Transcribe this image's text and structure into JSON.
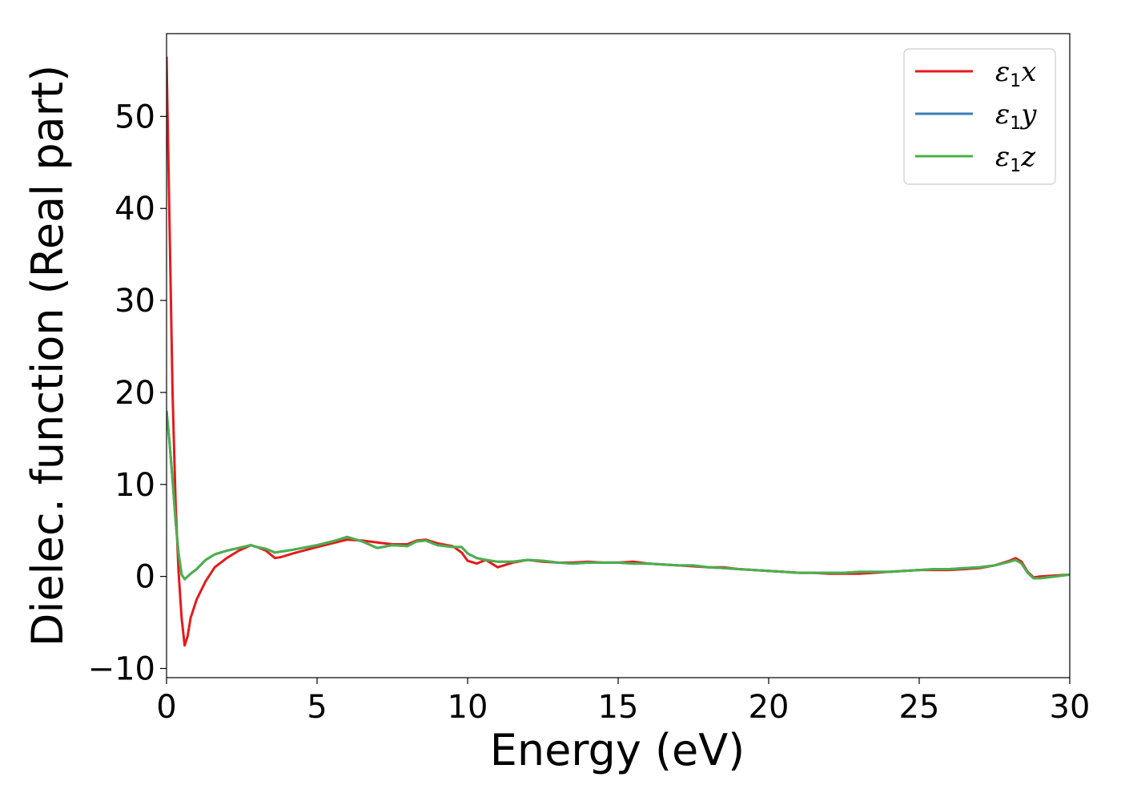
{
  "chart_data": {
    "type": "line",
    "title": "",
    "xlabel": "Energy (eV)",
    "ylabel": "Dielec. function (Real part)",
    "xlim": [
      0,
      30
    ],
    "ylim": [
      -11,
      59
    ],
    "xticks": [
      0,
      5,
      10,
      15,
      20,
      25,
      30
    ],
    "xtick_labels": [
      "0",
      "5",
      "10",
      "15",
      "20",
      "25",
      "30"
    ],
    "yticks": [
      -10,
      0,
      10,
      20,
      30,
      40,
      50
    ],
    "ytick_labels": [
      "−10",
      "0",
      "10",
      "20",
      "30",
      "40",
      "50"
    ],
    "grid": false,
    "legend_position": "top-right",
    "series": [
      {
        "name": "ε₁x",
        "legend_base": "ε",
        "legend_sub": "1",
        "legend_var": "x",
        "color": "#e41a1c",
        "x": [
          0,
          0.1,
          0.2,
          0.3,
          0.4,
          0.5,
          0.6,
          0.7,
          0.8,
          1.0,
          1.3,
          1.6,
          2.0,
          2.4,
          2.8,
          3.0,
          3.3,
          3.6,
          3.8,
          4.2,
          5.0,
          5.5,
          6.0,
          6.5,
          7.0,
          7.5,
          8.0,
          8.3,
          8.6,
          9.0,
          9.5,
          9.8,
          10.0,
          10.3,
          10.6,
          11.0,
          11.5,
          12.0,
          12.5,
          13.0,
          13.5,
          14.0,
          14.5,
          15.0,
          15.5,
          16.0,
          16.5,
          17.0,
          17.5,
          18.0,
          18.5,
          19.0,
          19.5,
          20.0,
          20.5,
          21.0,
          21.5,
          22.0,
          22.5,
          23.0,
          23.5,
          24.0,
          24.5,
          25.0,
          25.5,
          26.0,
          26.5,
          27.0,
          27.5,
          28.0,
          28.2,
          28.4,
          28.6,
          28.8,
          29.0,
          29.5,
          30.0
        ],
        "y": [
          56.5,
          38.0,
          20.0,
          8.0,
          0.5,
          -4.5,
          -7.5,
          -6.5,
          -4.5,
          -2.5,
          -0.5,
          1.0,
          2.0,
          2.8,
          3.4,
          3.2,
          2.8,
          2.0,
          2.1,
          2.5,
          3.2,
          3.6,
          4.0,
          3.9,
          3.7,
          3.5,
          3.5,
          3.9,
          4.0,
          3.6,
          3.3,
          2.6,
          1.7,
          1.4,
          1.8,
          1.0,
          1.5,
          1.8,
          1.6,
          1.5,
          1.5,
          1.6,
          1.5,
          1.5,
          1.6,
          1.4,
          1.3,
          1.2,
          1.1,
          1.0,
          1.0,
          0.8,
          0.7,
          0.6,
          0.5,
          0.4,
          0.4,
          0.3,
          0.3,
          0.3,
          0.4,
          0.5,
          0.6,
          0.7,
          0.7,
          0.7,
          0.8,
          0.9,
          1.2,
          1.7,
          2.0,
          1.6,
          0.5,
          -0.1,
          0.0,
          0.1,
          0.2
        ]
      },
      {
        "name": "ε₁y",
        "legend_base": "ε",
        "legend_sub": "1",
        "legend_var": "y",
        "color": "#377eb8",
        "x": [
          0,
          0.1,
          0.2,
          0.3,
          0.4,
          0.5,
          0.6,
          0.7,
          0.8,
          1.0,
          1.3,
          1.6,
          2.0,
          2.4,
          2.8,
          3.0,
          3.3,
          3.6,
          3.8,
          4.2,
          5.0,
          5.5,
          6.0,
          6.5,
          7.0,
          7.5,
          8.0,
          8.3,
          8.6,
          9.0,
          9.5,
          9.8,
          10.0,
          10.3,
          10.6,
          11.0,
          11.5,
          12.0,
          12.5,
          13.0,
          13.5,
          14.0,
          14.5,
          15.0,
          15.5,
          16.0,
          16.5,
          17.0,
          17.5,
          18.0,
          18.5,
          19.0,
          19.5,
          20.0,
          20.5,
          21.0,
          21.5,
          22.0,
          22.5,
          23.0,
          23.5,
          24.0,
          24.5,
          25.0,
          25.5,
          26.0,
          26.5,
          27.0,
          27.5,
          28.0,
          28.2,
          28.4,
          28.6,
          28.8,
          29.0,
          29.5,
          30.0
        ],
        "y": [
          18.0,
          14.5,
          10.5,
          6.0,
          2.5,
          0.2,
          -0.3,
          0.0,
          0.3,
          0.8,
          1.8,
          2.4,
          2.8,
          3.1,
          3.4,
          3.2,
          3.0,
          2.6,
          2.7,
          2.9,
          3.4,
          3.8,
          4.3,
          3.8,
          3.1,
          3.4,
          3.3,
          3.8,
          3.9,
          3.4,
          3.2,
          3.2,
          2.5,
          2.0,
          1.8,
          1.6,
          1.6,
          1.8,
          1.7,
          1.5,
          1.4,
          1.5,
          1.5,
          1.5,
          1.4,
          1.4,
          1.3,
          1.2,
          1.2,
          1.0,
          0.9,
          0.8,
          0.7,
          0.6,
          0.5,
          0.4,
          0.4,
          0.4,
          0.4,
          0.5,
          0.5,
          0.5,
          0.6,
          0.7,
          0.8,
          0.8,
          0.9,
          1.0,
          1.2,
          1.6,
          1.8,
          1.4,
          0.4,
          -0.2,
          -0.2,
          0.0,
          0.2
        ]
      },
      {
        "name": "ε₁z",
        "legend_base": "ε",
        "legend_sub": "1",
        "legend_var": "z",
        "color": "#4daf4a",
        "x": [
          0,
          0.1,
          0.2,
          0.3,
          0.4,
          0.5,
          0.6,
          0.7,
          0.8,
          1.0,
          1.3,
          1.6,
          2.0,
          2.4,
          2.8,
          3.0,
          3.3,
          3.6,
          3.8,
          4.2,
          5.0,
          5.5,
          6.0,
          6.5,
          7.0,
          7.5,
          8.0,
          8.3,
          8.6,
          9.0,
          9.5,
          9.8,
          10.0,
          10.3,
          10.6,
          11.0,
          11.5,
          12.0,
          12.5,
          13.0,
          13.5,
          14.0,
          14.5,
          15.0,
          15.5,
          16.0,
          16.5,
          17.0,
          17.5,
          18.0,
          18.5,
          19.0,
          19.5,
          20.0,
          20.5,
          21.0,
          21.5,
          22.0,
          22.5,
          23.0,
          23.5,
          24.0,
          24.5,
          25.0,
          25.5,
          26.0,
          26.5,
          27.0,
          27.5,
          28.0,
          28.2,
          28.4,
          28.6,
          28.8,
          29.0,
          29.5,
          30.0
        ],
        "y": [
          18.0,
          14.5,
          10.5,
          6.0,
          2.5,
          0.2,
          -0.3,
          0.0,
          0.3,
          0.8,
          1.8,
          2.4,
          2.8,
          3.1,
          3.4,
          3.2,
          3.0,
          2.6,
          2.7,
          2.9,
          3.4,
          3.8,
          4.3,
          3.8,
          3.1,
          3.4,
          3.3,
          3.8,
          3.9,
          3.4,
          3.2,
          3.2,
          2.5,
          2.0,
          1.8,
          1.6,
          1.6,
          1.8,
          1.7,
          1.5,
          1.4,
          1.5,
          1.5,
          1.5,
          1.4,
          1.4,
          1.3,
          1.2,
          1.2,
          1.0,
          0.9,
          0.8,
          0.7,
          0.6,
          0.5,
          0.4,
          0.4,
          0.4,
          0.4,
          0.5,
          0.5,
          0.5,
          0.6,
          0.7,
          0.8,
          0.8,
          0.9,
          1.0,
          1.2,
          1.6,
          1.8,
          1.4,
          0.4,
          -0.2,
          -0.2,
          0.0,
          0.2
        ]
      }
    ]
  }
}
